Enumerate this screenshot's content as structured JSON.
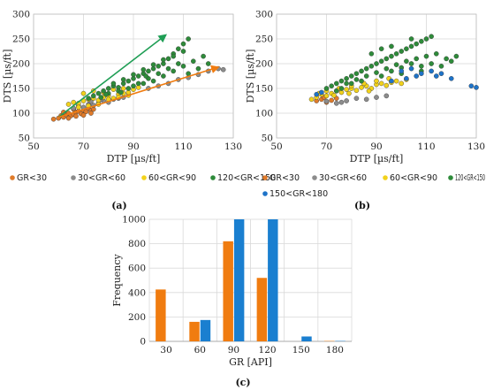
{
  "chart_data": [
    {
      "panel": "(a)",
      "type": "scatter",
      "xlabel": "DTP [µs/ft]",
      "ylabel": "DTS [µs/ft]",
      "xlim": [
        50,
        130
      ],
      "ylim": [
        50,
        300
      ],
      "xticks": [
        50,
        70,
        90,
        110,
        130
      ],
      "yticks": [
        50,
        100,
        150,
        200,
        250,
        300
      ],
      "grid": true,
      "legend_position": "bottom",
      "series": [
        {
          "name": "GR<30",
          "color": "#e07b2a",
          "points": [
            [
              58,
              88
            ],
            [
              60,
              90
            ],
            [
              61,
              95
            ],
            [
              62,
              92
            ],
            [
              63,
              97
            ],
            [
              64,
              100
            ],
            [
              65,
              95
            ],
            [
              66,
              98
            ],
            [
              67,
              102
            ],
            [
              68,
              104
            ],
            [
              69,
              99
            ],
            [
              70,
              106
            ],
            [
              71,
              103
            ],
            [
              72,
              110
            ],
            [
              73,
              105
            ],
            [
              74,
              108
            ],
            [
              64,
              90
            ],
            [
              67,
              94
            ],
            [
              70,
              96
            ],
            [
              73,
              100
            ],
            [
              62,
              102
            ],
            [
              66,
              108
            ]
          ]
        },
        {
          "name": "30<GR<60",
          "color": "#8c8c8c",
          "points": [
            [
              66,
              110
            ],
            [
              68,
              115
            ],
            [
              70,
              112
            ],
            [
              72,
              118
            ],
            [
              74,
              116
            ],
            [
              76,
              120
            ],
            [
              78,
              125
            ],
            [
              80,
              122
            ],
            [
              82,
              128
            ],
            [
              84,
              130
            ],
            [
              86,
              132
            ],
            [
              96,
              150
            ],
            [
              100,
              155
            ],
            [
              104,
              160
            ],
            [
              108,
              168
            ],
            [
              112,
              172
            ],
            [
              116,
              178
            ],
            [
              120,
              185
            ],
            [
              124,
              190
            ],
            [
              126,
              188
            ],
            [
              73,
              124
            ],
            [
              77,
              128
            ]
          ]
        },
        {
          "name": "60<GR<90",
          "color": "#f2d21b",
          "points": [
            [
              64,
              118
            ],
            [
              66,
              122
            ],
            [
              68,
              120
            ],
            [
              70,
              125
            ],
            [
              72,
              128
            ],
            [
              74,
              130
            ],
            [
              76,
              126
            ],
            [
              78,
              132
            ],
            [
              80,
              135
            ],
            [
              82,
              130
            ],
            [
              84,
              138
            ],
            [
              86,
              140
            ],
            [
              88,
              136
            ],
            [
              70,
              140
            ],
            [
              74,
              145
            ],
            [
              78,
              142
            ],
            [
              82,
              148
            ],
            [
              86,
              150
            ],
            [
              90,
              148
            ],
            [
              68,
              112
            ],
            [
              72,
              115
            ],
            [
              76,
              118
            ],
            [
              80,
              128
            ],
            [
              84,
              132
            ],
            [
              88,
              142
            ],
            [
              92,
              152
            ]
          ]
        },
        {
          "name": "120<GR<150",
          "color": "#2e8b3a",
          "points": [
            [
              72,
              130
            ],
            [
              74,
              135
            ],
            [
              76,
              140
            ],
            [
              78,
              145
            ],
            [
              80,
              150
            ],
            [
              82,
              155
            ],
            [
              84,
              152
            ],
            [
              86,
              160
            ],
            [
              88,
              165
            ],
            [
              90,
              170
            ],
            [
              92,
              175
            ],
            [
              94,
              180
            ],
            [
              96,
              185
            ],
            [
              98,
              190
            ],
            [
              100,
              195
            ],
            [
              102,
              200
            ],
            [
              104,
              210
            ],
            [
              106,
              220
            ],
            [
              108,
              230
            ],
            [
              110,
              240
            ],
            [
              112,
              250
            ],
            [
              80,
              140
            ],
            [
              84,
              145
            ],
            [
              88,
              150
            ],
            [
              92,
              160
            ],
            [
              96,
              170
            ],
            [
              100,
              180
            ],
            [
              104,
              190
            ],
            [
              108,
              200
            ],
            [
              82,
              160
            ],
            [
              86,
              168
            ],
            [
              90,
              178
            ],
            [
              94,
              188
            ],
            [
              98,
              198
            ],
            [
              102,
              208
            ],
            [
              106,
              215
            ],
            [
              110,
              225
            ],
            [
              94,
              160
            ],
            [
              98,
              165
            ],
            [
              102,
              175
            ],
            [
              106,
              185
            ],
            [
              110,
              195
            ],
            [
              114,
              205
            ],
            [
              118,
              215
            ],
            [
              112,
              180
            ],
            [
              116,
              190
            ],
            [
              120,
              200
            ],
            [
              90,
              155
            ],
            [
              95,
              175
            ],
            [
              85,
              142
            ],
            [
              79,
              138
            ],
            [
              77,
              132
            ]
          ]
        }
      ],
      "annotations": [
        "arrow-green",
        "arrow-orange"
      ]
    },
    {
      "panel": "(b)",
      "type": "scatter",
      "xlabel": "DTP [µs/ft]",
      "ylabel": "DTS [µs/ft]",
      "xlim": [
        50,
        130
      ],
      "ylim": [
        50,
        300
      ],
      "xticks": [
        50,
        70,
        90,
        110,
        130
      ],
      "yticks": [
        50,
        100,
        150,
        200,
        250,
        300
      ],
      "grid": true,
      "legend_position": "bottom",
      "series": [
        {
          "name": "GR<30",
          "color": "#e07b2a",
          "points": [
            [
              66,
              125
            ],
            [
              68,
              128
            ],
            [
              70,
              122
            ],
            [
              72,
              126
            ],
            [
              74,
              130
            ],
            [
              69,
              132
            ]
          ]
        },
        {
          "name": "30<GR<60",
          "color": "#8c8c8c",
          "points": [
            [
              70,
              124
            ],
            [
              74,
              120
            ],
            [
              78,
              125
            ],
            [
              82,
              130
            ],
            [
              86,
              128
            ],
            [
              90,
              132
            ],
            [
              94,
              135
            ],
            [
              76,
              122
            ]
          ]
        },
        {
          "name": "60<GR<90",
          "color": "#f2d21b",
          "points": [
            [
              64,
              128
            ],
            [
              66,
              132
            ],
            [
              68,
              138
            ],
            [
              70,
              135
            ],
            [
              72,
              140
            ],
            [
              74,
              145
            ],
            [
              76,
              142
            ],
            [
              78,
              148
            ],
            [
              80,
              150
            ],
            [
              82,
              146
            ],
            [
              84,
              152
            ],
            [
              86,
              155
            ],
            [
              88,
              150
            ],
            [
              90,
              158
            ],
            [
              92,
              160
            ],
            [
              94,
              156
            ],
            [
              96,
              162
            ],
            [
              98,
              165
            ],
            [
              100,
              160
            ],
            [
              102,
              168
            ],
            [
              70,
              145
            ],
            [
              75,
              150
            ],
            [
              80,
              155
            ],
            [
              85,
              160
            ],
            [
              90,
              165
            ],
            [
              95,
              170
            ],
            [
              67,
              140
            ],
            [
              73,
              136
            ],
            [
              79,
              140
            ],
            [
              87,
              145
            ]
          ]
        },
        {
          "name": "120<GR<150",
          "color": "#2e8b3a",
          "points": [
            [
              70,
              150
            ],
            [
              72,
              155
            ],
            [
              74,
              160
            ],
            [
              76,
              165
            ],
            [
              78,
              170
            ],
            [
              80,
              175
            ],
            [
              82,
              180
            ],
            [
              84,
              185
            ],
            [
              86,
              190
            ],
            [
              88,
              195
            ],
            [
              90,
              200
            ],
            [
              92,
              205
            ],
            [
              94,
              210
            ],
            [
              96,
              215
            ],
            [
              98,
              220
            ],
            [
              100,
              225
            ],
            [
              102,
              230
            ],
            [
              104,
              235
            ],
            [
              106,
              240
            ],
            [
              108,
              245
            ],
            [
              110,
              250
            ],
            [
              112,
              255
            ],
            [
              78,
              160
            ],
            [
              82,
              168
            ],
            [
              86,
              175
            ],
            [
              90,
              182
            ],
            [
              94,
              190
            ],
            [
              98,
              198
            ],
            [
              102,
              205
            ],
            [
              106,
              210
            ],
            [
              110,
              215
            ],
            [
              114,
              220
            ],
            [
              118,
              210
            ],
            [
              120,
              205
            ],
            [
              96,
              185
            ],
            [
              100,
              192
            ],
            [
              104,
              200
            ],
            [
              108,
              195
            ],
            [
              112,
              200
            ],
            [
              116,
              195
            ],
            [
              76,
              150
            ],
            [
              84,
              165
            ],
            [
              92,
              175
            ],
            [
              100,
              180
            ],
            [
              108,
              185
            ],
            [
              122,
              215
            ],
            [
              104,
              250
            ],
            [
              96,
              235
            ],
            [
              88,
              220
            ],
            [
              92,
              230
            ],
            [
              74,
              145
            ],
            [
              80,
              160
            ]
          ]
        },
        {
          "name": "150<GR<180",
          "color": "#1e73c8",
          "points": [
            [
              66,
              138
            ],
            [
              68,
              142
            ],
            [
              100,
              185
            ],
            [
              104,
              190
            ],
            [
              106,
              175
            ],
            [
              108,
              180
            ],
            [
              112,
              185
            ],
            [
              114,
              175
            ],
            [
              116,
              180
            ],
            [
              102,
              170
            ],
            [
              96,
              165
            ],
            [
              128,
              155
            ],
            [
              130,
              152
            ],
            [
              120,
              170
            ]
          ]
        }
      ]
    },
    {
      "panel": "(c)",
      "type": "bar",
      "xlabel": "GR [API]",
      "ylabel": "Frequency",
      "categories": [
        "30",
        "60",
        "90",
        "120",
        "150",
        "180"
      ],
      "ylim": [
        0,
        1000
      ],
      "yticks": [
        0,
        200,
        400,
        600,
        800,
        1000
      ],
      "grid": true,
      "series": [
        {
          "name": "",
          "color": "#f07c10",
          "values": [
            425,
            160,
            820,
            520,
            0,
            3
          ]
        },
        {
          "name": "",
          "color": "#1a7fd0",
          "values": [
            0,
            175,
            1000,
            1000,
            40,
            3
          ]
        }
      ]
    }
  ],
  "labels": {
    "panel_a": "(a)",
    "panel_b": "(b)",
    "panel_c": "(c)"
  }
}
